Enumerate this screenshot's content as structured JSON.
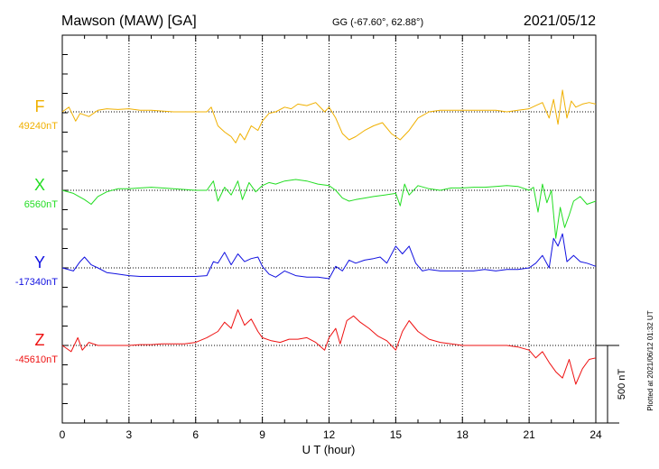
{
  "header": {
    "station": "Mawson (MAW)  [GA]",
    "coords": "GG (-67.60°,  62.88°)",
    "date": "2021/05/12"
  },
  "footer": {
    "plotted": "Plotted at 2021/06/12 01:32 UT"
  },
  "chart_data": {
    "type": "line",
    "title": "Mawson (MAW)  [GA]",
    "xlabel": "U T (hour)",
    "ylabel": "",
    "xlim": [
      0,
      24
    ],
    "xticks": [
      0,
      3,
      6,
      9,
      12,
      15,
      18,
      21,
      24
    ],
    "xtick_labels": [
      "0",
      "3",
      "6",
      "9",
      "12",
      "15",
      "18",
      "21",
      "24"
    ],
    "grid": true,
    "scale_bar": {
      "label": "500 nT",
      "value_nT": 500
    },
    "series": [
      {
        "name": "F",
        "baseline_label": "49240nT",
        "baseline_nT": 49240,
        "color": "#f0b000",
        "x": [
          0,
          0.3,
          0.6,
          0.8,
          1.2,
          1.6,
          2.0,
          2.5,
          3.0,
          3.5,
          4.0,
          4.5,
          5.0,
          5.5,
          6.0,
          6.5,
          6.7,
          7.0,
          7.3,
          7.6,
          7.8,
          8.0,
          8.2,
          8.5,
          8.8,
          9.0,
          9.3,
          9.6,
          10.0,
          10.3,
          10.6,
          11.0,
          11.4,
          11.8,
          12.0,
          12.3,
          12.6,
          12.9,
          13.2,
          13.6,
          14.0,
          14.4,
          14.8,
          15.2,
          15.6,
          16.0,
          16.5,
          17.0,
          17.5,
          18.0,
          18.5,
          19.0,
          19.5,
          20.0,
          20.5,
          21.0,
          21.3,
          21.6,
          21.9,
          22.1,
          22.3,
          22.5,
          22.7,
          22.9,
          23.1,
          23.4,
          23.7,
          24.0
        ],
        "y": [
          49240,
          49270,
          49180,
          49230,
          49210,
          49250,
          49260,
          49255,
          49260,
          49250,
          49250,
          49245,
          49240,
          49240,
          49240,
          49240,
          49270,
          49150,
          49110,
          49080,
          49040,
          49100,
          49060,
          49150,
          49120,
          49180,
          49230,
          49240,
          49270,
          49260,
          49290,
          49280,
          49300,
          49240,
          49270,
          49200,
          49100,
          49060,
          49080,
          49120,
          49150,
          49170,
          49100,
          49060,
          49120,
          49200,
          49240,
          49250,
          49250,
          49250,
          49250,
          49250,
          49250,
          49240,
          49250,
          49260,
          49280,
          49300,
          49200,
          49320,
          49160,
          49380,
          49200,
          49310,
          49270,
          49290,
          49300,
          49290
        ]
      },
      {
        "name": "X",
        "baseline_label": "6560nT",
        "baseline_nT": 6560,
        "color": "#22dd22",
        "x": [
          0,
          0.5,
          1.0,
          1.3,
          1.6,
          2.0,
          2.5,
          3.0,
          3.5,
          4.0,
          4.5,
          5.0,
          5.5,
          6.0,
          6.5,
          6.8,
          7.0,
          7.3,
          7.6,
          7.9,
          8.1,
          8.4,
          8.7,
          9.0,
          9.3,
          9.6,
          10.0,
          10.5,
          11.0,
          11.5,
          12.0,
          12.3,
          12.6,
          12.9,
          13.2,
          13.6,
          14.0,
          14.5,
          15.0,
          15.2,
          15.4,
          15.6,
          16.0,
          16.5,
          17.0,
          17.5,
          18.0,
          18.5,
          19.0,
          19.5,
          20.0,
          20.5,
          21.0,
          21.2,
          21.4,
          21.6,
          21.8,
          22.0,
          22.2,
          22.4,
          22.6,
          22.8,
          23.0,
          23.3,
          23.6,
          24.0
        ],
        "y": [
          6560,
          6540,
          6500,
          6470,
          6520,
          6550,
          6570,
          6570,
          6575,
          6580,
          6575,
          6570,
          6565,
          6560,
          6560,
          6620,
          6490,
          6580,
          6530,
          6620,
          6500,
          6610,
          6550,
          6590,
          6610,
          6600,
          6620,
          6630,
          6620,
          6600,
          6590,
          6560,
          6510,
          6490,
          6500,
          6510,
          6520,
          6530,
          6540,
          6460,
          6600,
          6530,
          6590,
          6570,
          6560,
          6575,
          6575,
          6580,
          6580,
          6585,
          6590,
          6585,
          6560,
          6580,
          6420,
          6600,
          6480,
          6560,
          6250,
          6450,
          6320,
          6400,
          6490,
          6520,
          6470,
          6490
        ]
      },
      {
        "name": "Y",
        "baseline_label": "-17340nT",
        "baseline_nT": -17340,
        "color": "#1010e0",
        "x": [
          0,
          0.5,
          0.8,
          1.0,
          1.3,
          1.6,
          2.0,
          2.5,
          3.0,
          3.5,
          4.0,
          4.5,
          5.0,
          5.5,
          6.0,
          6.5,
          6.8,
          7.0,
          7.3,
          7.6,
          7.9,
          8.2,
          8.5,
          8.8,
          9.0,
          9.3,
          9.6,
          10.0,
          10.5,
          11.0,
          11.5,
          12.0,
          12.3,
          12.6,
          12.9,
          13.2,
          13.6,
          14.0,
          14.3,
          14.6,
          15.0,
          15.3,
          15.6,
          15.9,
          16.2,
          16.5,
          17.0,
          17.5,
          18.0,
          18.5,
          19.0,
          19.5,
          20.0,
          20.5,
          21.0,
          21.3,
          21.6,
          21.9,
          22.1,
          22.3,
          22.5,
          22.7,
          23.0,
          23.3,
          23.6,
          24.0
        ],
        "y": [
          -17340,
          -17360,
          -17300,
          -17270,
          -17320,
          -17340,
          -17370,
          -17380,
          -17390,
          -17395,
          -17395,
          -17395,
          -17395,
          -17395,
          -17395,
          -17390,
          -17300,
          -17310,
          -17240,
          -17320,
          -17250,
          -17300,
          -17280,
          -17270,
          -17330,
          -17380,
          -17400,
          -17360,
          -17390,
          -17400,
          -17400,
          -17410,
          -17330,
          -17360,
          -17290,
          -17310,
          -17290,
          -17280,
          -17270,
          -17310,
          -17200,
          -17250,
          -17200,
          -17310,
          -17360,
          -17350,
          -17360,
          -17360,
          -17360,
          -17360,
          -17350,
          -17360,
          -17350,
          -17350,
          -17340,
          -17310,
          -17260,
          -17340,
          -17150,
          -17200,
          -17120,
          -17300,
          -17260,
          -17300,
          -17310,
          -17330
        ]
      },
      {
        "name": "Z",
        "baseline_label": "-45610nT",
        "baseline_nT": -45610,
        "color": "#ee1111",
        "x": [
          0,
          0.4,
          0.7,
          0.9,
          1.2,
          1.6,
          2.0,
          2.5,
          3.0,
          3.5,
          4.0,
          4.5,
          5.0,
          5.5,
          6.0,
          6.5,
          7.0,
          7.3,
          7.6,
          7.9,
          8.2,
          8.5,
          8.8,
          9.0,
          9.4,
          9.8,
          10.2,
          10.6,
          11.0,
          11.4,
          11.8,
          12.0,
          12.3,
          12.5,
          12.8,
          13.1,
          13.4,
          13.8,
          14.2,
          14.6,
          15.0,
          15.3,
          15.6,
          16.0,
          16.5,
          17.0,
          17.5,
          18.0,
          18.5,
          19.0,
          19.5,
          20.0,
          20.5,
          21.0,
          21.3,
          21.6,
          21.9,
          22.2,
          22.5,
          22.8,
          23.1,
          23.4,
          23.7,
          24.0
        ],
        "y": [
          -45610,
          -45650,
          -45560,
          -45640,
          -45590,
          -45610,
          -45610,
          -45610,
          -45610,
          -45605,
          -45605,
          -45600,
          -45600,
          -45600,
          -45590,
          -45560,
          -45520,
          -45460,
          -45500,
          -45380,
          -45480,
          -45440,
          -45520,
          -45560,
          -45580,
          -45590,
          -45570,
          -45570,
          -45560,
          -45590,
          -45640,
          -45560,
          -45500,
          -45600,
          -45450,
          -45420,
          -45460,
          -45500,
          -45550,
          -45580,
          -45640,
          -45520,
          -45450,
          -45520,
          -45570,
          -45590,
          -45600,
          -45610,
          -45610,
          -45610,
          -45610,
          -45610,
          -45620,
          -45640,
          -45690,
          -45650,
          -45720,
          -45780,
          -45820,
          -45700,
          -45860,
          -45760,
          -45700,
          -45690
        ]
      }
    ]
  }
}
